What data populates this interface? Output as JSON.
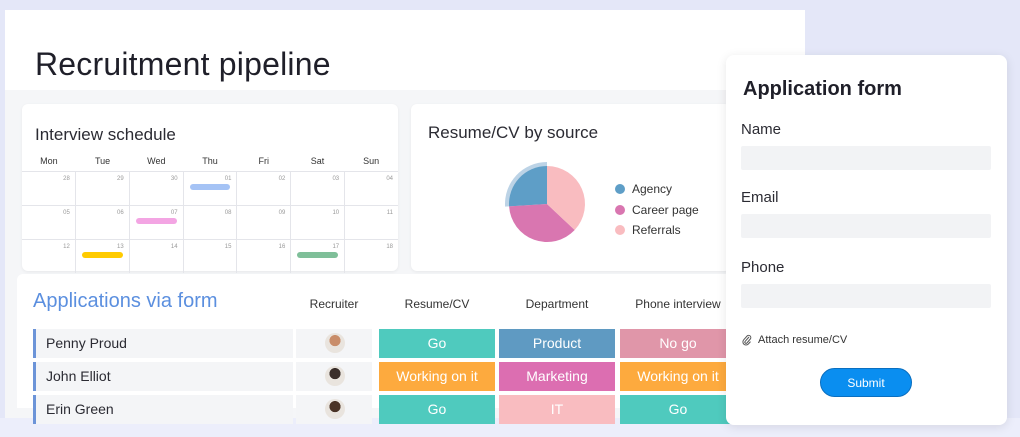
{
  "page": {
    "title": "Recruitment pipeline"
  },
  "calendar": {
    "title": "Interview schedule",
    "days": [
      "Mon",
      "Tue",
      "Wed",
      "Thu",
      "Fri",
      "Sat",
      "Sun"
    ],
    "weeks": [
      [
        "28",
        "29",
        "30",
        "01",
        "02",
        "03",
        "04"
      ],
      [
        "05",
        "06",
        "07",
        "08",
        "09",
        "10",
        "11"
      ],
      [
        "12",
        "13",
        "14",
        "15",
        "16",
        "17",
        "18"
      ]
    ],
    "events": [
      {
        "week": 0,
        "day": 3,
        "color": "#a5c3f5"
      },
      {
        "week": 1,
        "day": 2,
        "color": "#f3a5e3"
      },
      {
        "week": 2,
        "day": 1,
        "color": "#ffcb00"
      },
      {
        "week": 2,
        "day": 5,
        "color": "#7fbf99"
      }
    ]
  },
  "pie_card": {
    "title": "Resume/CV by source",
    "chart_data": {
      "type": "pie",
      "title": "Resume/CV by source",
      "categories": [
        "Agency",
        "Career page",
        "Referrals"
      ],
      "values": [
        26,
        37,
        37
      ],
      "colors": [
        "#5e9ec7",
        "#d976b0",
        "#f9bcc0"
      ],
      "legend_position": "right"
    }
  },
  "applications": {
    "title": "Applications via form",
    "columns": [
      "Recruiter",
      "Resume/CV",
      "Department",
      "Phone interview"
    ],
    "rows": [
      {
        "name": "Penny Proud",
        "avatar_color": "#c98d6a",
        "resume": {
          "label": "Go",
          "color": "#4fcabe"
        },
        "department": {
          "label": "Product",
          "color": "#5f9ac2"
        },
        "phone": {
          "label": "No go",
          "color": "#e096a9"
        }
      },
      {
        "name": "John Elliot",
        "avatar_color": "#3a2e2a",
        "resume": {
          "label": "Working on it",
          "color": "#fdaa3e"
        },
        "department": {
          "label": "Marketing",
          "color": "#dc6eb1"
        },
        "phone": {
          "label": "Working on it",
          "color": "#fdaa3e"
        }
      },
      {
        "name": "Erin Green",
        "avatar_color": "#4a3326",
        "resume": {
          "label": "Go",
          "color": "#4fcabe"
        },
        "department": {
          "label": "IT",
          "color": "#f9bcc0"
        },
        "phone": {
          "label": "Go",
          "color": "#4fcabe"
        }
      }
    ]
  },
  "form": {
    "title": "Application form",
    "fields": [
      {
        "label": "Name",
        "value": ""
      },
      {
        "label": "Email",
        "value": ""
      },
      {
        "label": "Phone",
        "value": ""
      }
    ],
    "attach_label": "Attach resume/CV",
    "submit_label": "Submit",
    "accent": "#0a8ef0"
  }
}
